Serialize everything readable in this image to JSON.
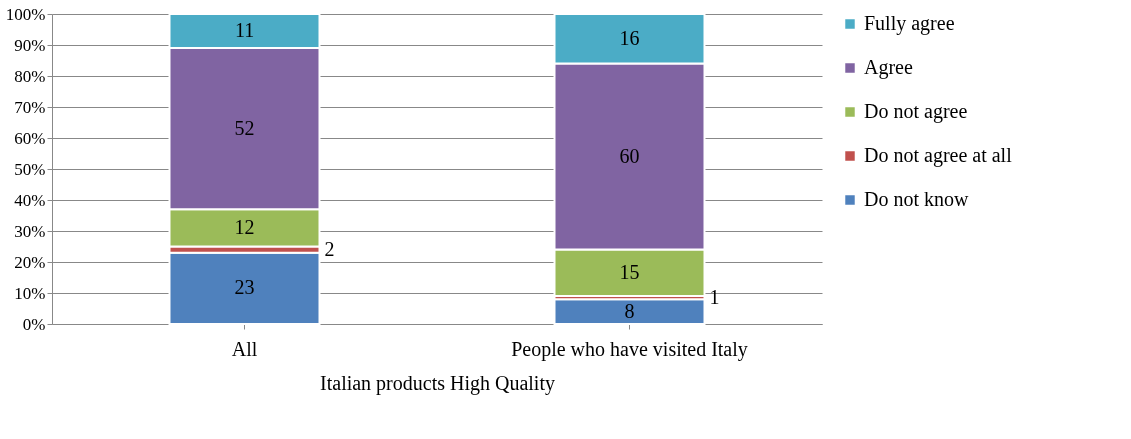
{
  "chart_data": {
    "type": "bar",
    "stacked": true,
    "xlabel": "Italian products High Quality",
    "categories": [
      "All",
      "People who have visited Italy"
    ],
    "series": [
      {
        "name": "Do not know",
        "color": "#4f81bd",
        "values": [
          23,
          8
        ]
      },
      {
        "name": "Do not agree at all",
        "color": "#c0504d",
        "values": [
          2,
          1
        ]
      },
      {
        "name": "Do not agree",
        "color": "#9bbb59",
        "values": [
          12,
          15
        ]
      },
      {
        "name": "Agree",
        "color": "#8064a2",
        "values": [
          52,
          60
        ]
      },
      {
        "name": "Fully agree",
        "color": "#4bacc6",
        "values": [
          11,
          16
        ]
      }
    ],
    "ylim": [
      0,
      100
    ],
    "yticks": [
      {
        "value": 0,
        "label": "0%"
      },
      {
        "value": 10,
        "label": "10%"
      },
      {
        "value": 20,
        "label": "20%"
      },
      {
        "value": 30,
        "label": "30%"
      },
      {
        "value": 40,
        "label": "40%"
      },
      {
        "value": 50,
        "label": "50%"
      },
      {
        "value": 60,
        "label": "60%"
      },
      {
        "value": 70,
        "label": "70%"
      },
      {
        "value": 80,
        "label": "80%"
      },
      {
        "value": 90,
        "label": "90%"
      },
      {
        "value": 100,
        "label": "100%"
      }
    ],
    "grid": "y",
    "legend": "right",
    "data_labels": true
  }
}
